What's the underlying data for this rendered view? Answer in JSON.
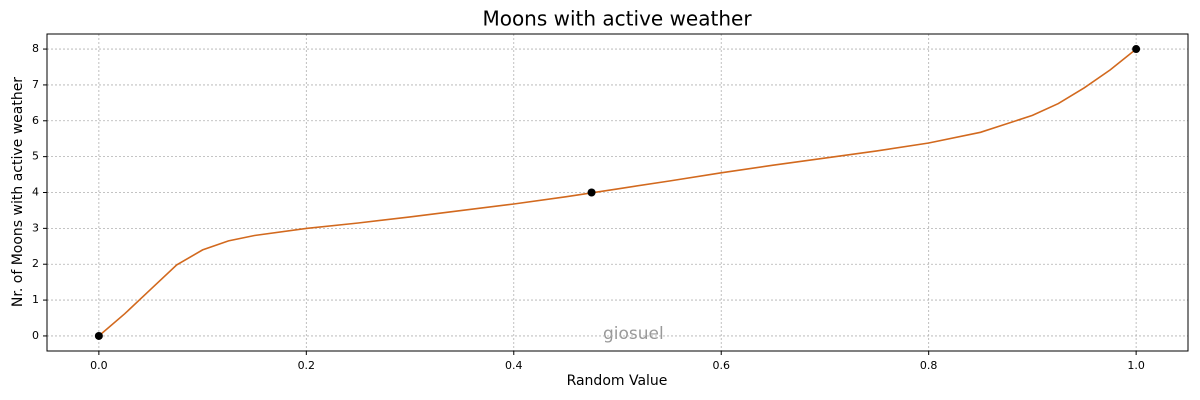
{
  "chart_data": {
    "type": "line",
    "title": "Moons with active weather",
    "xlabel": "Random Value",
    "ylabel": "Nr. of Moons with active weather",
    "watermark": "giosuel",
    "x": [
      0,
      0.025,
      0.05,
      0.075,
      0.1,
      0.125,
      0.15,
      0.2,
      0.25,
      0.3,
      0.35,
      0.4,
      0.45,
      0.5,
      0.55,
      0.6,
      0.65,
      0.7,
      0.75,
      0.8,
      0.85,
      0.9,
      0.925,
      0.95,
      0.975,
      1.0
    ],
    "values": [
      0,
      0.62,
      1.3,
      1.98,
      2.4,
      2.65,
      2.8,
      3.0,
      3.15,
      3.32,
      3.5,
      3.68,
      3.88,
      4.1,
      4.32,
      4.55,
      4.76,
      4.96,
      5.16,
      5.38,
      5.68,
      6.15,
      6.48,
      6.92,
      7.42,
      8.0
    ],
    "color": "#d2691e",
    "markers": {
      "x": [
        0,
        0.475,
        1.0
      ],
      "values": [
        0,
        4,
        8
      ],
      "color": "#000000"
    },
    "xlim": [
      -0.05,
      1.05
    ],
    "ylim": [
      -0.42,
      8.42
    ],
    "xticks": [
      {
        "value": 0,
        "label": "0.0"
      },
      {
        "value": 0.2,
        "label": "0.2"
      },
      {
        "value": 0.4,
        "label": "0.4"
      },
      {
        "value": 0.6,
        "label": "0.6"
      },
      {
        "value": 0.8,
        "label": "0.8"
      },
      {
        "value": 1,
        "label": "1.0"
      }
    ],
    "yticks": [
      0,
      1,
      2,
      3,
      4,
      5,
      6,
      7,
      8
    ],
    "grid": true
  }
}
